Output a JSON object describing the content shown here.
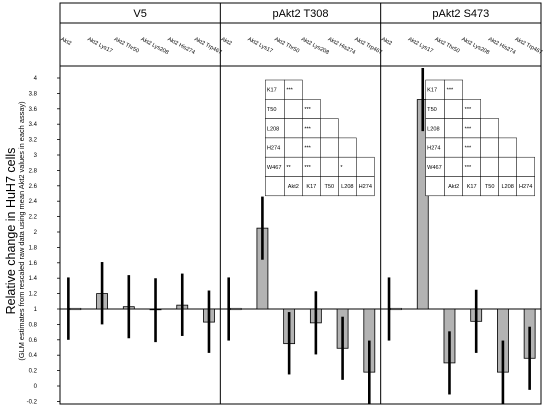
{
  "chart_data": {
    "type": "bar",
    "ylabel": "Relative change in HuH7 cells",
    "ylabel_sub": "(GLM estimates from rescaled raw data using mean Akt2 values in each assay)",
    "ylim": [
      -0.25,
      4.15
    ],
    "yticks": [
      -0.2,
      0,
      0.2,
      0.4,
      0.6,
      0.8,
      1,
      1.2,
      1.4,
      1.6,
      1.8,
      2,
      2.2,
      2.4,
      2.6,
      2.8,
      3,
      3.2,
      3.4,
      3.6,
      3.8,
      4
    ],
    "baseline": 1,
    "categories": [
      "Akt2",
      "Akt2 Lys17",
      "Akt2 Thr50",
      "Akt2 Lys208",
      "Akt2 His274",
      "Akt2 Trp467"
    ],
    "panels": [
      {
        "title": "V5",
        "values": [
          1.0,
          1.2,
          1.03,
          0.99,
          1.05,
          0.83
        ],
        "error_low": [
          0.6,
          0.8,
          0.62,
          0.57,
          0.65,
          0.43
        ],
        "error_high": [
          1.41,
          1.61,
          1.44,
          1.4,
          1.46,
          1.24
        ],
        "significance": null
      },
      {
        "title": "pAkt2 T308",
        "values": [
          1.0,
          2.05,
          0.55,
          0.82,
          0.49,
          0.18
        ],
        "error_low": [
          0.59,
          1.64,
          0.15,
          0.41,
          0.08,
          -0.23
        ],
        "error_high": [
          1.41,
          2.46,
          0.96,
          1.23,
          0.9,
          0.59
        ],
        "significance": {
          "rows": [
            "K17",
            "T50",
            "L208",
            "H274",
            "W467"
          ],
          "cols": [
            "Akt2",
            "K17",
            "T50",
            "L208",
            "H274"
          ],
          "cells": [
            [
              "***",
              "",
              "",
              "",
              ""
            ],
            [
              "",
              "***",
              "",
              "",
              ""
            ],
            [
              "",
              "***",
              "",
              "",
              ""
            ],
            [
              "",
              "***",
              "",
              "",
              ""
            ],
            [
              "**",
              "***",
              "",
              "*",
              ""
            ]
          ]
        }
      },
      {
        "title": "pAkt2 S473",
        "values": [
          1.0,
          3.72,
          0.3,
          0.84,
          0.18,
          0.36
        ],
        "error_low": [
          0.59,
          3.31,
          -0.11,
          0.43,
          -0.23,
          -0.05
        ],
        "error_high": [
          1.41,
          4.13,
          0.71,
          1.25,
          0.59,
          0.77
        ],
        "significance": {
          "rows": [
            "K17",
            "T50",
            "L208",
            "H274",
            "W467"
          ],
          "cols": [
            "Akt2",
            "K17",
            "T50",
            "L208",
            "H274"
          ],
          "cells": [
            [
              "***",
              "",
              "",
              "",
              ""
            ],
            [
              "",
              "***",
              "",
              "",
              ""
            ],
            [
              "",
              "***",
              "",
              "",
              ""
            ],
            [
              "",
              "***",
              "",
              "",
              ""
            ],
            [
              "",
              "***",
              "",
              "",
              ""
            ]
          ]
        }
      }
    ],
    "colors": {
      "bar_fill": "#b3b3b3",
      "error_bar": "#000000",
      "frame": "#000000"
    }
  }
}
